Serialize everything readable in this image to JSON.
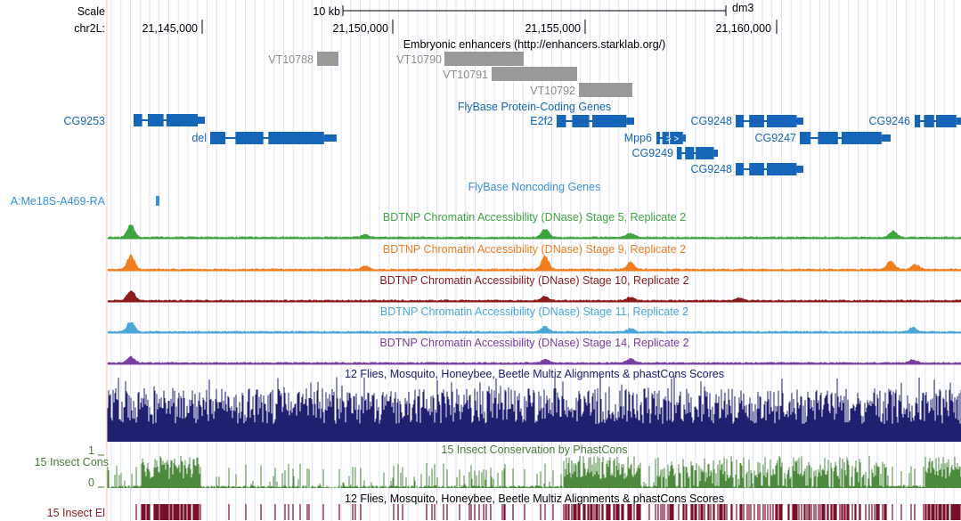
{
  "ruler": {
    "scale_label": "Scale",
    "scale_size": "10 kb",
    "assembly": "dm3",
    "chrom_label": "chr2L:",
    "positions": [
      "21,145,000",
      "21,150,000",
      "21,155,000",
      "21,160,000"
    ]
  },
  "enhancers": {
    "title": "Embryonic enhancers (http://enhancers.starklab.org/)",
    "items": [
      "VT10788",
      "VT10790",
      "VT10791",
      "VT10792"
    ]
  },
  "coding_genes": {
    "title": "FlyBase Protein-Coding Genes",
    "side_label": "CG9253",
    "items": [
      "del",
      "E2f2",
      "CG9248",
      "CG9246",
      "Mpp6",
      "CG9247",
      "CG9249",
      "CG9248"
    ]
  },
  "noncoding_genes": {
    "title": "FlyBase Noncoding Genes",
    "side_label": "A:Me18S-A469-RA"
  },
  "dnase_tracks": [
    "BDTNP Chromatin Accessibility (DNase) Stage 5, Replicate 2",
    "BDTNP Chromatin Accessibility (DNase) Stage 9, Replicate 2",
    "BDTNP Chromatin Accessibility (DNase) Stage 10, Replicate 2",
    "BDTNP Chromatin Accessibility (DNase) Stage 11, Replicate 2",
    "BDTNP Chromatin Accessibility (DNase) Stage 14, Replicate 2"
  ],
  "conservation": {
    "multiz_title": "12 Flies, Mosquito, Honeybee, Beetle Multiz Alignments & phastCons Scores",
    "phastcons_title": "15 Insect Conservation by PhastCons",
    "side_label": "15 Insect Cons",
    "axis_max": "1",
    "axis_min": "0",
    "elements_title": "12 Flies, Mosquito, Honeybee, Beetle Multiz Alignments & phastCons Scores",
    "elements_label": "15 Insect El"
  }
}
